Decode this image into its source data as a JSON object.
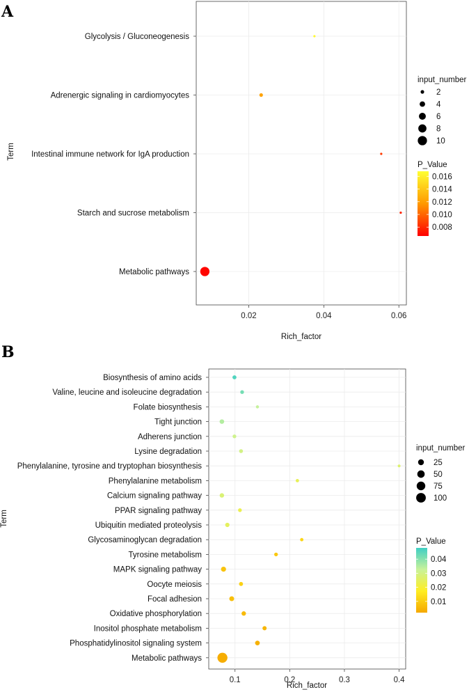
{
  "chart_data": [
    {
      "panel": "A",
      "type": "scatter",
      "title": "",
      "xlabel": "Rich_factor",
      "ylabel": "Term",
      "xlim": [
        0.006,
        0.062
      ],
      "x_ticks": [
        0.02,
        0.04,
        0.06
      ],
      "x_tick_labels": [
        "0.02",
        "0.04",
        "0.06"
      ],
      "size_legend": {
        "title": "input_number",
        "values": [
          2,
          4,
          6,
          8,
          10
        ],
        "labels": [
          "2",
          "4",
          "6",
          "8",
          "10"
        ]
      },
      "color_legend": {
        "title": "P_Value",
        "min": 0.0066,
        "max": 0.0168,
        "ticks": [
          0.016,
          0.014,
          0.012,
          0.01,
          0.008
        ],
        "tick_labels": [
          "0.016",
          "0.014",
          "0.012",
          "0.010",
          "0.008"
        ],
        "colors": [
          "#ff0000",
          "#ff9900",
          "#ffff33"
        ]
      },
      "points": [
        {
          "term": "Glycolysis / Gluconeogenesis",
          "rich_factor": 0.0375,
          "input_number": 1,
          "p_value": 0.0165
        },
        {
          "term": "Adrenergic signaling in cardiomyocytes",
          "rich_factor": 0.0233,
          "input_number": 2,
          "p_value": 0.0122
        },
        {
          "term": "Intestinal immune network for IgA production",
          "rich_factor": 0.0553,
          "input_number": 1,
          "p_value": 0.0085
        },
        {
          "term": "Starch and sucrose metabolism",
          "rich_factor": 0.0605,
          "input_number": 1,
          "p_value": 0.0078
        },
        {
          "term": "Metabolic pathways",
          "rich_factor": 0.0083,
          "input_number": 10,
          "p_value": 0.0068
        }
      ]
    },
    {
      "panel": "B",
      "type": "scatter",
      "title": "",
      "xlabel": "Rich_factor",
      "ylabel": "Term",
      "xlim": [
        0.052,
        0.412
      ],
      "x_ticks": [
        0.1,
        0.2,
        0.3,
        0.4
      ],
      "x_tick_labels": [
        "0.1",
        "0.2",
        "0.3",
        "0.4"
      ],
      "size_legend": {
        "title": "input_number",
        "values": [
          25,
          50,
          75,
          100
        ],
        "labels": [
          "25",
          "50",
          "75",
          "100"
        ]
      },
      "color_legend": {
        "title": "P_Value",
        "min": 0.002,
        "max": 0.048,
        "ticks": [
          0.04,
          0.03,
          0.02,
          0.01
        ],
        "tick_labels": [
          "0.04",
          "0.03",
          "0.02",
          "0.01"
        ],
        "colors": [
          "#f5a800",
          "#ffee22",
          "#c8f29a",
          "#3fcfc4"
        ]
      },
      "points": [
        {
          "term": "Biosynthesis of amino acids",
          "rich_factor": 0.099,
          "input_number": 7,
          "p_value": 0.046
        },
        {
          "term": "Valine, leucine and isoleucine degradation",
          "rich_factor": 0.113,
          "input_number": 5,
          "p_value": 0.042
        },
        {
          "term": "Folate biosynthesis",
          "rich_factor": 0.141,
          "input_number": 2,
          "p_value": 0.033
        },
        {
          "term": "Tight junction",
          "rich_factor": 0.076,
          "input_number": 11,
          "p_value": 0.035
        },
        {
          "term": "Adherens junction",
          "rich_factor": 0.099,
          "input_number": 5,
          "p_value": 0.031
        },
        {
          "term": "Lysine degradation",
          "rich_factor": 0.111,
          "input_number": 6,
          "p_value": 0.03
        },
        {
          "term": "Phenylalanine, tyrosine and tryptophan biosynthesis",
          "rich_factor": 0.4,
          "input_number": 1,
          "p_value": 0.027
        },
        {
          "term": "Phenylalanine metabolism",
          "rich_factor": 0.214,
          "input_number": 3,
          "p_value": 0.024
        },
        {
          "term": "Calcium signaling pathway",
          "rich_factor": 0.076,
          "input_number": 10,
          "p_value": 0.028
        },
        {
          "term": "PPAR signaling pathway",
          "rich_factor": 0.109,
          "input_number": 5,
          "p_value": 0.023
        },
        {
          "term": "Ubiquitin mediated proteolysis",
          "rich_factor": 0.086,
          "input_number": 9,
          "p_value": 0.025
        },
        {
          "term": "Glycosaminoglycan degradation",
          "rich_factor": 0.222,
          "input_number": 3,
          "p_value": 0.012
        },
        {
          "term": "Tyrosine metabolism",
          "rich_factor": 0.175,
          "input_number": 5,
          "p_value": 0.009
        },
        {
          "term": "MAPK signaling pathway",
          "rich_factor": 0.079,
          "input_number": 16,
          "p_value": 0.008
        },
        {
          "term": "Oocyte meiosis",
          "rich_factor": 0.111,
          "input_number": 7,
          "p_value": 0.011
        },
        {
          "term": "Focal adhesion",
          "rich_factor": 0.094,
          "input_number": 14,
          "p_value": 0.007
        },
        {
          "term": "Oxidative phosphorylation",
          "rich_factor": 0.116,
          "input_number": 10,
          "p_value": 0.006
        },
        {
          "term": "Inositol phosphate metabolism",
          "rich_factor": 0.154,
          "input_number": 8,
          "p_value": 0.005
        },
        {
          "term": "Phosphatidylinositol signaling system",
          "rich_factor": 0.141,
          "input_number": 12,
          "p_value": 0.004
        },
        {
          "term": "Metabolic pathways",
          "rich_factor": 0.077,
          "input_number": 110,
          "p_value": 0.003
        }
      ]
    }
  ]
}
